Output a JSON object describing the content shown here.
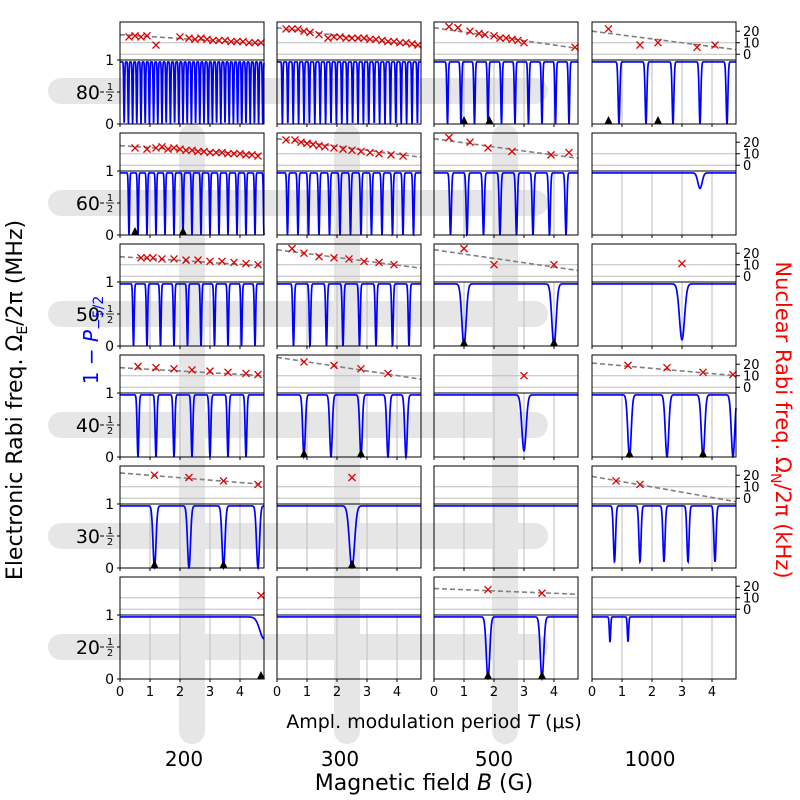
{
  "chart_data": {
    "type": "grid_of_line_plots",
    "outer_xlabel_prefix": "Magnetic field ",
    "outer_xlabel_var": "B",
    "outer_xlabel_suffix": " (G)",
    "outer_ylabel_prefix": "Electronic Rabi freq. Ω",
    "outer_ylabel_sub": "E",
    "outer_ylabel_suffix": "/2π (MHz)",
    "inner_xlabel_prefix": "Ampl. modulation period ",
    "inner_xlabel_var": "T",
    "inner_xlabel_suffix": " (μs)",
    "left_label_prefix": "1 − ",
    "left_label_var": "P",
    "left_label_sub": "−5/2",
    "right_label_prefix": "Nuclear Rabi freq. Ω",
    "right_label_sub": "N",
    "right_label_suffix": "/2π (kHz)",
    "columns_B_G": [
      "200",
      "300",
      "500",
      "1000"
    ],
    "rows_Omega_E_MHz": [
      "80",
      "60",
      "50",
      "40",
      "30",
      "20"
    ],
    "inner_x_ticks": [
      "0",
      "1",
      "2",
      "3",
      "4"
    ],
    "inner_x_range_us": [
      0,
      4.8
    ],
    "lower_y_ticks": [
      "1",
      "1/2",
      "0"
    ],
    "lower_y_range": [
      0,
      1
    ],
    "upper_y_ticks": [
      "20",
      "10",
      "0"
    ],
    "upper_y_range_kHz": [
      -5,
      28
    ],
    "colors": {
      "transition": "#0000ff",
      "marker": "#e00000",
      "fit": "#808080",
      "peak_marker": "#000000",
      "left_label": "#0000ff",
      "right_label": "#ff0000"
    },
    "panels": [
      {
        "row": "80",
        "col": "200",
        "period": 0.14,
        "width": 0.02,
        "depth": 1.0,
        "crosses": [
          [
            0.3,
            15
          ],
          [
            0.5,
            16
          ],
          [
            0.7,
            15
          ],
          [
            0.9,
            16
          ],
          [
            1.2,
            8
          ],
          [
            2,
            15
          ],
          [
            2.3,
            14
          ],
          [
            2.5,
            13
          ],
          [
            2.7,
            14
          ],
          [
            2.9,
            13
          ],
          [
            3.1,
            12
          ],
          [
            3.3,
            12
          ],
          [
            3.5,
            12
          ],
          [
            3.7,
            11
          ],
          [
            3.9,
            11
          ],
          [
            4.1,
            11
          ],
          [
            4.3,
            10
          ],
          [
            4.5,
            10
          ],
          [
            4.7,
            10
          ]
        ],
        "fit": [
          0,
          17,
          4.8,
          9
        ],
        "arrows": []
      },
      {
        "row": "80",
        "col": "300",
        "period": 0.18,
        "width": 0.02,
        "depth": 1.0,
        "crosses": [
          [
            0.3,
            22
          ],
          [
            0.5,
            22
          ],
          [
            0.7,
            22
          ],
          [
            0.9,
            20
          ],
          [
            1.1,
            19
          ],
          [
            1.4,
            17
          ],
          [
            1.7,
            14
          ],
          [
            1.9,
            15
          ],
          [
            2.1,
            15
          ],
          [
            2.3,
            14
          ],
          [
            2.5,
            14
          ],
          [
            2.7,
            14
          ],
          [
            2.9,
            14
          ],
          [
            3.1,
            13
          ],
          [
            3.3,
            13
          ],
          [
            3.5,
            12
          ],
          [
            3.7,
            11
          ],
          [
            3.9,
            11
          ],
          [
            4.1,
            10
          ],
          [
            4.3,
            10
          ],
          [
            4.5,
            9
          ],
          [
            4.7,
            8
          ]
        ],
        "fit": [
          0,
          23,
          4.8,
          7
        ],
        "arrows": []
      },
      {
        "row": "80",
        "col": "500",
        "period": 0.45,
        "width": 0.03,
        "depth": 1.0,
        "crosses": [
          [
            0.5,
            24
          ],
          [
            0.8,
            23
          ],
          [
            1.2,
            20
          ],
          [
            1.5,
            18
          ],
          [
            1.7,
            17
          ],
          [
            2,
            16
          ],
          [
            2.2,
            14
          ],
          [
            2.4,
            14
          ],
          [
            2.6,
            13
          ],
          [
            2.8,
            12
          ],
          [
            3,
            10
          ],
          [
            4.7,
            6
          ]
        ],
        "fit": [
          0,
          23,
          4.8,
          5
        ],
        "arrows": [
          1.0,
          1.85
        ]
      },
      {
        "row": "80",
        "col": "1000",
        "period": 0.9,
        "width": 0.04,
        "depth": 1.0,
        "crosses": [
          [
            0.55,
            22
          ],
          [
            1.6,
            8
          ],
          [
            2.2,
            10
          ],
          [
            3.5,
            6
          ],
          [
            4.1,
            8
          ]
        ],
        "fit": [
          0,
          20,
          4.8,
          4
        ],
        "arrows": [
          0.55,
          2.2
        ]
      },
      {
        "row": "60",
        "col": "200",
        "period": 0.3,
        "width": 0.025,
        "depth": 1.0,
        "crosses": [
          [
            0.5,
            15
          ],
          [
            0.9,
            14
          ],
          [
            1.2,
            15
          ],
          [
            1.4,
            16
          ],
          [
            1.6,
            14
          ],
          [
            1.8,
            15
          ],
          [
            2,
            14
          ],
          [
            2.2,
            13
          ],
          [
            2.4,
            13
          ],
          [
            2.6,
            12
          ],
          [
            2.8,
            12
          ],
          [
            3,
            11
          ],
          [
            3.2,
            11
          ],
          [
            3.4,
            11
          ],
          [
            3.6,
            10
          ],
          [
            3.8,
            10
          ],
          [
            4,
            10
          ],
          [
            4.2,
            9
          ],
          [
            4.4,
            9
          ],
          [
            4.6,
            8
          ]
        ],
        "fit": [
          0,
          17,
          4.8,
          9
        ],
        "arrows": [
          0.5,
          2.1
        ]
      },
      {
        "row": "60",
        "col": "300",
        "period": 0.35,
        "width": 0.03,
        "depth": 1.0,
        "crosses": [
          [
            0.3,
            22
          ],
          [
            0.6,
            22
          ],
          [
            0.8,
            20
          ],
          [
            1,
            19
          ],
          [
            1.2,
            18
          ],
          [
            1.4,
            17
          ],
          [
            1.6,
            16
          ],
          [
            1.9,
            15
          ],
          [
            2.2,
            14
          ],
          [
            2.5,
            13
          ],
          [
            2.8,
            12
          ],
          [
            3.1,
            11
          ],
          [
            3.4,
            10
          ],
          [
            3.8,
            9
          ],
          [
            4.2,
            8
          ]
        ],
        "fit": [
          0,
          23,
          4.8,
          7
        ],
        "arrows": []
      },
      {
        "row": "60",
        "col": "500",
        "period": 0.55,
        "width": 0.04,
        "depth": 1.0,
        "crosses": [
          [
            0.5,
            24
          ],
          [
            1.2,
            20
          ],
          [
            1.8,
            15
          ],
          [
            2.6,
            12
          ],
          [
            3.9,
            9
          ],
          [
            4.5,
            11
          ]
        ],
        "fit": [
          0,
          23,
          4.8,
          6
        ],
        "arrows": []
      },
      {
        "row": "60",
        "col": "1000",
        "period": null,
        "width": 0.1,
        "depth": 0.25,
        "dips": [
          3.6
        ],
        "crosses": [],
        "fit": null,
        "arrows": []
      },
      {
        "row": "50",
        "col": "200",
        "period": 0.45,
        "width": 0.03,
        "depth": 1.0,
        "crosses": [
          [
            0.7,
            16
          ],
          [
            0.9,
            16
          ],
          [
            1.1,
            16
          ],
          [
            1.4,
            15
          ],
          [
            1.8,
            15
          ],
          [
            2.2,
            14
          ],
          [
            2.6,
            14
          ],
          [
            3,
            13
          ],
          [
            3.4,
            13
          ],
          [
            3.8,
            12
          ],
          [
            4.2,
            11
          ],
          [
            4.6,
            10
          ]
        ],
        "fit": [
          0,
          17,
          4.8,
          9
        ],
        "arrows": []
      },
      {
        "row": "50",
        "col": "300",
        "period": 0.55,
        "width": 0.035,
        "depth": 1.0,
        "crosses": [
          [
            0.5,
            24
          ],
          [
            0.9,
            20
          ],
          [
            1.4,
            17
          ],
          [
            1.9,
            16
          ],
          [
            2.4,
            15
          ],
          [
            2.9,
            13
          ],
          [
            3.4,
            12
          ],
          [
            3.9,
            10
          ]
        ],
        "fit": [
          0,
          23,
          4.8,
          7
        ],
        "arrows": []
      },
      {
        "row": "50",
        "col": "500",
        "period": null,
        "width": 0.1,
        "depth": 1.0,
        "dips": [
          1.0,
          4.0
        ],
        "crosses": [
          [
            1.0,
            24
          ],
          [
            2.0,
            10
          ],
          [
            4.0,
            10
          ]
        ],
        "fit": [
          0,
          23,
          4.8,
          5
        ],
        "arrows": [
          1.0,
          4.0
        ]
      },
      {
        "row": "50",
        "col": "1000",
        "period": null,
        "width": 0.12,
        "depth": 0.9,
        "dips": [
          3.0
        ],
        "crosses": [
          [
            3.0,
            11
          ]
        ],
        "fit": null,
        "arrows": []
      },
      {
        "row": "40",
        "col": "200",
        "period": 0.6,
        "width": 0.04,
        "depth": 1.0,
        "crosses": [
          [
            0.6,
            18
          ],
          [
            1.2,
            17
          ],
          [
            1.8,
            16
          ],
          [
            2.4,
            15
          ],
          [
            3,
            14
          ],
          [
            3.6,
            13
          ],
          [
            4.2,
            12
          ],
          [
            4.6,
            11
          ]
        ],
        "fit": [
          0,
          17,
          4.8,
          10
        ],
        "arrows": []
      },
      {
        "row": "40",
        "col": "300",
        "period": null,
        "width": 0.06,
        "depth": 1.0,
        "dips": [
          0.9,
          1.8,
          2.8,
          3.7,
          4.3
        ],
        "crosses": [
          [
            0.9,
            22
          ],
          [
            1.9,
            19
          ],
          [
            2.8,
            16
          ],
          [
            3.7,
            12
          ]
        ],
        "fit": [
          0,
          26,
          4.8,
          7
        ],
        "arrows": [
          0.9,
          2.8
        ]
      },
      {
        "row": "40",
        "col": "500",
        "period": null,
        "width": 0.1,
        "depth": 0.9,
        "dips": [
          3.0
        ],
        "crosses": [
          [
            3.0,
            10
          ]
        ],
        "fit": null,
        "arrows": []
      },
      {
        "row": "40",
        "col": "1000",
        "period": null,
        "width": 0.08,
        "depth": 1.0,
        "dips": [
          1.25,
          2.5,
          3.7,
          4.7
        ],
        "crosses": [
          [
            1.2,
            19
          ],
          [
            2.5,
            17
          ],
          [
            3.7,
            13
          ],
          [
            4.7,
            11
          ]
        ],
        "fit": [
          0,
          21,
          4.8,
          10
        ],
        "arrows": [
          1.25,
          3.7
        ]
      },
      {
        "row": "30",
        "col": "200",
        "period": null,
        "width": 0.07,
        "depth": 1.0,
        "dips": [
          1.15,
          2.3,
          3.45,
          4.6
        ],
        "crosses": [
          [
            1.15,
            20
          ],
          [
            2.3,
            18
          ],
          [
            3.45,
            15
          ],
          [
            4.6,
            12
          ]
        ],
        "fit": [
          0,
          22,
          4.8,
          12
        ],
        "arrows": [
          1.15,
          3.45
        ]
      },
      {
        "row": "30",
        "col": "300",
        "period": null,
        "width": 0.12,
        "depth": 1.0,
        "dips": [
          2.5
        ],
        "crosses": [
          [
            2.5,
            18
          ]
        ],
        "fit": null,
        "arrows": [
          2.5
        ]
      },
      {
        "row": "30",
        "col": "500",
        "period": null,
        "width": 0.1,
        "depth": 0.05,
        "dips": [],
        "crosses": [],
        "fit": null,
        "arrows": []
      },
      {
        "row": "30",
        "col": "1000",
        "period": null,
        "width": 0.05,
        "depth": 0.9,
        "dips": [
          0.75,
          1.6,
          2.4,
          3.2,
          4.1
        ],
        "crosses": [
          [
            0.8,
            15
          ],
          [
            1.6,
            12
          ]
        ],
        "fit": [
          0,
          19,
          4.8,
          -3
        ],
        "arrows": []
      },
      {
        "row": "20",
        "col": "200",
        "period": null,
        "width": 0.2,
        "depth": 0.35,
        "dips": [
          4.8
        ],
        "crosses": [
          [
            4.7,
            12
          ]
        ],
        "fit": null,
        "arrows": [
          4.7
        ]
      },
      {
        "row": "20",
        "col": "300",
        "period": null,
        "width": 0.1,
        "depth": 0.0,
        "dips": [],
        "crosses": [],
        "fit": null,
        "arrows": []
      },
      {
        "row": "20",
        "col": "500",
        "period": null,
        "width": 0.08,
        "depth": 1.0,
        "dips": [
          1.8,
          3.6
        ],
        "crosses": [
          [
            1.8,
            17
          ],
          [
            3.6,
            14
          ]
        ],
        "fit": [
          0,
          18,
          4.8,
          13
        ],
        "arrows": [
          1.8,
          3.6
        ]
      },
      {
        "row": "20",
        "col": "1000",
        "period": null,
        "width": 0.03,
        "depth": 0.4,
        "dips": [
          0.6,
          1.2
        ],
        "crosses": [],
        "fit": null,
        "arrows": []
      }
    ]
  }
}
